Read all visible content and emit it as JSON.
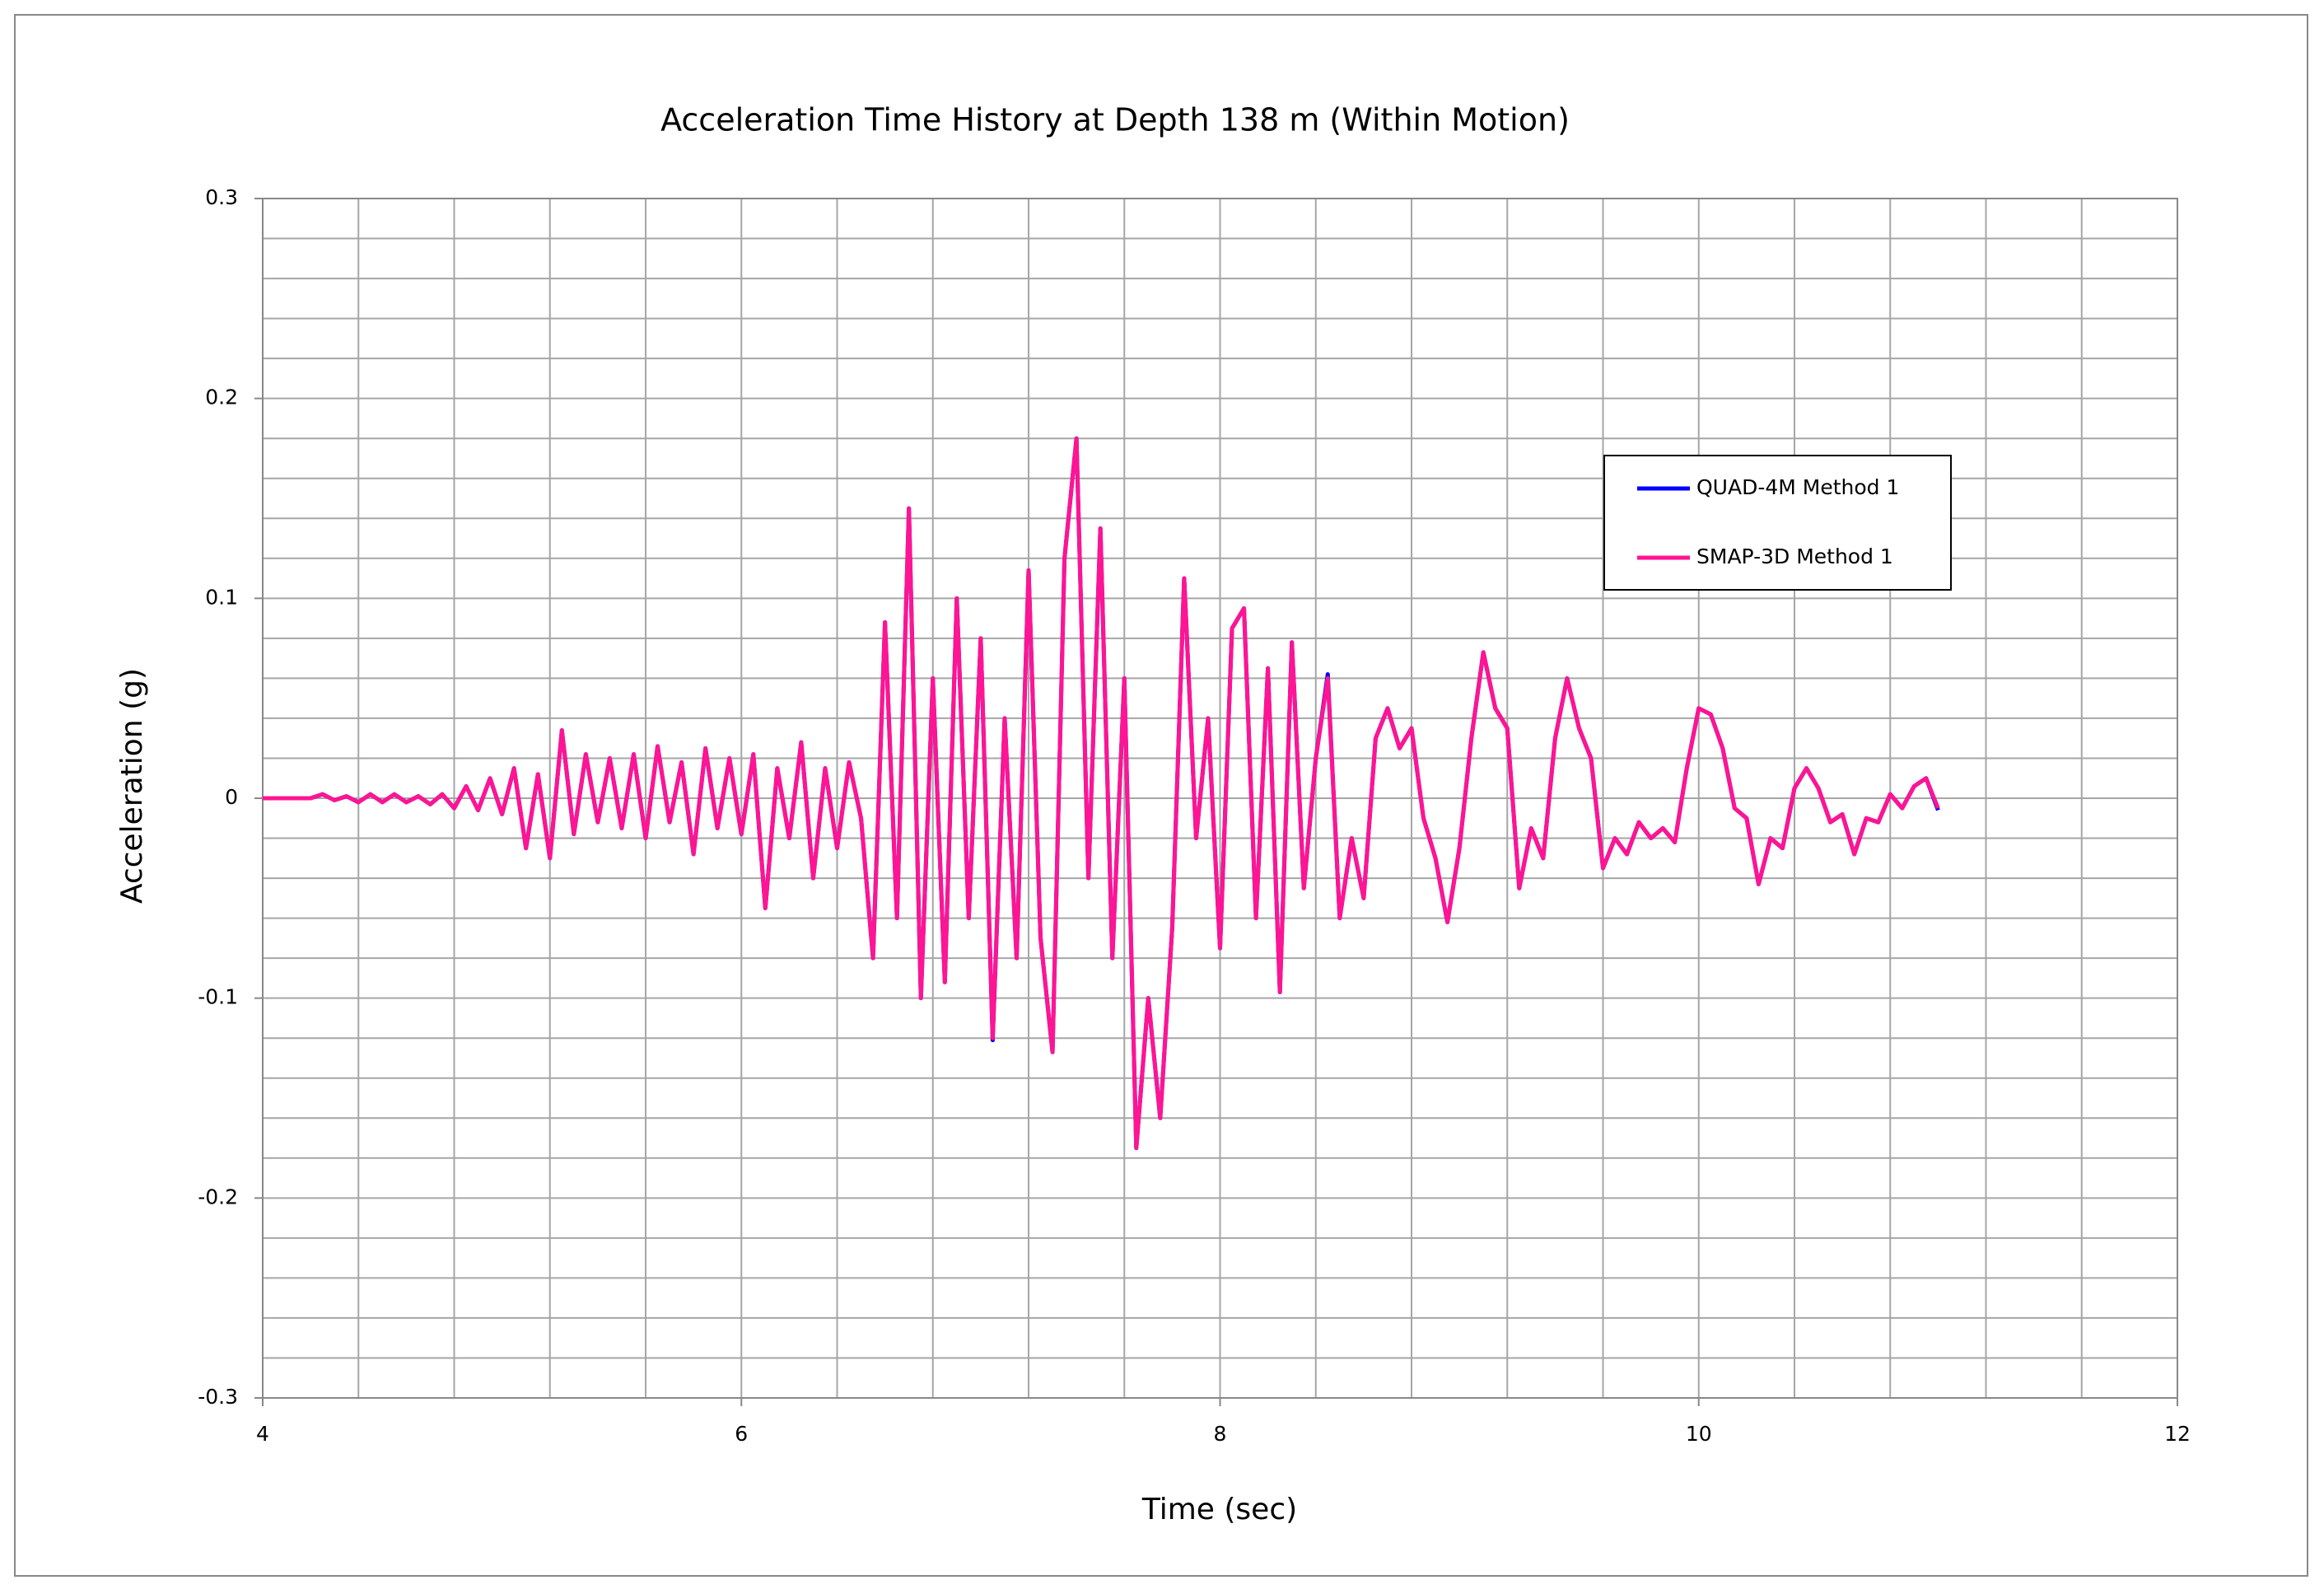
{
  "chart_data": {
    "type": "line",
    "title": "Acceleration Time History  at Depth 138 m (Within Motion)",
    "x_label": "Time (sec)",
    "y_label": "Acceleration  (g)",
    "xlim": [
      4,
      12
    ],
    "xticks": [
      4,
      6,
      8,
      10,
      12
    ],
    "ylim": [
      -0.3,
      0.3
    ],
    "yticks": [
      -0.3,
      -0.2,
      -0.1,
      0,
      0.1,
      0.2,
      0.3
    ],
    "x_minor_grid": [
      4.4,
      4.8,
      5.2,
      5.6,
      6.4,
      6.8,
      7.2,
      7.6,
      8.4,
      8.8,
      9.2,
      9.6,
      10.4,
      10.8,
      11.2,
      11.6
    ],
    "y_minor_grid": [
      -0.28,
      -0.26,
      -0.24,
      -0.22,
      -0.18,
      -0.16,
      -0.14,
      -0.12,
      -0.08,
      -0.06,
      -0.04,
      -0.02,
      0.02,
      0.04,
      0.06,
      0.08,
      0.12,
      0.14,
      0.16,
      0.18,
      0.22,
      0.24,
      0.26,
      0.28
    ],
    "grid": true,
    "legend": "upper right",
    "x": [
      4.0,
      4.05,
      4.1,
      4.15,
      4.2,
      4.25,
      4.3,
      4.35,
      4.4,
      4.45,
      4.5,
      4.55,
      4.6,
      4.65,
      4.7,
      4.75,
      4.8,
      4.85,
      4.9,
      4.95,
      5.0,
      5.05,
      5.1,
      5.15,
      5.2,
      5.25,
      5.3,
      5.35,
      5.4,
      5.45,
      5.5,
      5.55,
      5.6,
      5.65,
      5.7,
      5.75,
      5.8,
      5.85,
      5.9,
      5.95,
      6.0,
      6.05,
      6.1,
      6.15,
      6.2,
      6.25,
      6.3,
      6.35,
      6.4,
      6.45,
      6.5,
      6.55,
      6.6,
      6.65,
      6.7,
      6.75,
      6.8,
      6.85,
      6.9,
      6.95,
      7.0,
      7.05,
      7.1,
      7.15,
      7.2,
      7.25,
      7.3,
      7.35,
      7.4,
      7.45,
      7.5,
      7.55,
      7.6,
      7.65,
      7.7,
      7.75,
      7.8,
      7.85,
      7.9,
      7.95,
      8.0,
      8.05,
      8.1,
      8.15,
      8.2,
      8.25,
      8.3,
      8.35,
      8.4,
      8.45,
      8.5,
      8.55,
      8.6,
      8.65,
      8.7,
      8.75,
      8.8,
      8.85,
      8.9,
      8.95,
      9.0,
      9.05,
      9.1,
      9.15,
      9.2,
      9.25,
      9.3,
      9.35,
      9.4,
      9.45,
      9.5,
      9.55,
      9.6,
      9.65,
      9.7,
      9.75,
      9.8,
      9.85,
      9.9,
      9.95,
      10.0,
      10.05,
      10.1,
      10.15,
      10.2,
      10.25,
      10.3,
      10.35,
      10.4,
      10.45,
      10.5,
      10.55,
      10.6,
      10.65,
      10.7,
      10.75,
      10.8,
      10.85,
      10.9,
      10.95,
      11.0
    ],
    "series": [
      {
        "name": "QUAD-4M  Method 1",
        "color": "#0000ff",
        "values": [
          0,
          0,
          0,
          0,
          0,
          0.002,
          -0.001,
          0.001,
          -0.002,
          0.002,
          -0.002,
          0.002,
          -0.002,
          0.001,
          -0.003,
          0.002,
          -0.005,
          0.006,
          -0.006,
          0.01,
          -0.008,
          0.015,
          -0.025,
          0.012,
          -0.03,
          0.034,
          -0.018,
          0.022,
          -0.012,
          0.02,
          -0.015,
          0.022,
          -0.02,
          0.026,
          -0.012,
          0.018,
          -0.028,
          0.025,
          -0.015,
          0.02,
          -0.018,
          0.022,
          -0.055,
          0.015,
          -0.02,
          0.028,
          -0.04,
          0.015,
          -0.025,
          0.018,
          -0.01,
          -0.08,
          0.088,
          -0.06,
          0.145,
          -0.1,
          0.06,
          -0.092,
          0.1,
          -0.06,
          0.08,
          -0.121,
          0.04,
          -0.08,
          0.114,
          -0.07,
          -0.127,
          0.12,
          0.18,
          -0.04,
          0.135,
          -0.08,
          0.06,
          -0.175,
          -0.1,
          -0.16,
          -0.065,
          0.11,
          -0.02,
          0.04,
          -0.075,
          0.085,
          0.095,
          -0.06,
          0.065,
          -0.097,
          0.078,
          -0.045,
          0.02,
          0.062,
          -0.06,
          -0.02,
          -0.05,
          0.03,
          0.045,
          0.025,
          0.035,
          -0.01,
          -0.03,
          -0.062,
          -0.025,
          0.03,
          0.073,
          0.045,
          0.035,
          -0.045,
          -0.015,
          -0.03,
          0.03,
          0.06,
          0.035,
          0.02,
          -0.035,
          -0.02,
          -0.028,
          -0.012,
          -0.02,
          -0.015,
          -0.022,
          0.015,
          0.045,
          0.042,
          0.025,
          -0.005,
          -0.01,
          -0.043,
          -0.02,
          -0.025,
          0.005,
          0.015,
          0.005,
          -0.012,
          -0.008,
          -0.028,
          -0.01,
          -0.012,
          0.002,
          -0.005,
          0.006,
          0.01,
          -0.006
        ]
      },
      {
        "name": "SMAP-3D  Method 1",
        "color": "#ff1493",
        "values": [
          0,
          0,
          0,
          0,
          0,
          0.002,
          -0.001,
          0.001,
          -0.002,
          0.002,
          -0.002,
          0.002,
          -0.002,
          0.001,
          -0.003,
          0.002,
          -0.005,
          0.006,
          -0.006,
          0.01,
          -0.008,
          0.015,
          -0.025,
          0.012,
          -0.03,
          0.034,
          -0.018,
          0.022,
          -0.012,
          0.02,
          -0.015,
          0.022,
          -0.02,
          0.026,
          -0.012,
          0.018,
          -0.028,
          0.025,
          -0.015,
          0.02,
          -0.018,
          0.022,
          -0.055,
          0.015,
          -0.02,
          0.028,
          -0.04,
          0.015,
          -0.025,
          0.018,
          -0.01,
          -0.08,
          0.088,
          -0.06,
          0.145,
          -0.1,
          0.06,
          -0.092,
          0.1,
          -0.06,
          0.08,
          -0.12,
          0.04,
          -0.08,
          0.114,
          -0.07,
          -0.127,
          0.12,
          0.18,
          -0.04,
          0.135,
          -0.08,
          0.06,
          -0.175,
          -0.1,
          -0.16,
          -0.065,
          0.11,
          -0.02,
          0.04,
          -0.075,
          0.085,
          0.095,
          -0.06,
          0.065,
          -0.097,
          0.078,
          -0.045,
          0.02,
          0.06,
          -0.06,
          -0.02,
          -0.05,
          0.03,
          0.045,
          0.025,
          0.035,
          -0.01,
          -0.03,
          -0.062,
          -0.025,
          0.03,
          0.073,
          0.045,
          0.035,
          -0.045,
          -0.015,
          -0.03,
          0.03,
          0.06,
          0.035,
          0.02,
          -0.035,
          -0.02,
          -0.028,
          -0.012,
          -0.02,
          -0.015,
          -0.022,
          0.015,
          0.045,
          0.042,
          0.025,
          -0.005,
          -0.01,
          -0.043,
          -0.02,
          -0.025,
          0.005,
          0.015,
          0.005,
          -0.012,
          -0.008,
          -0.028,
          -0.01,
          -0.012,
          0.002,
          -0.005,
          0.006,
          0.01,
          -0.005
        ]
      }
    ]
  }
}
